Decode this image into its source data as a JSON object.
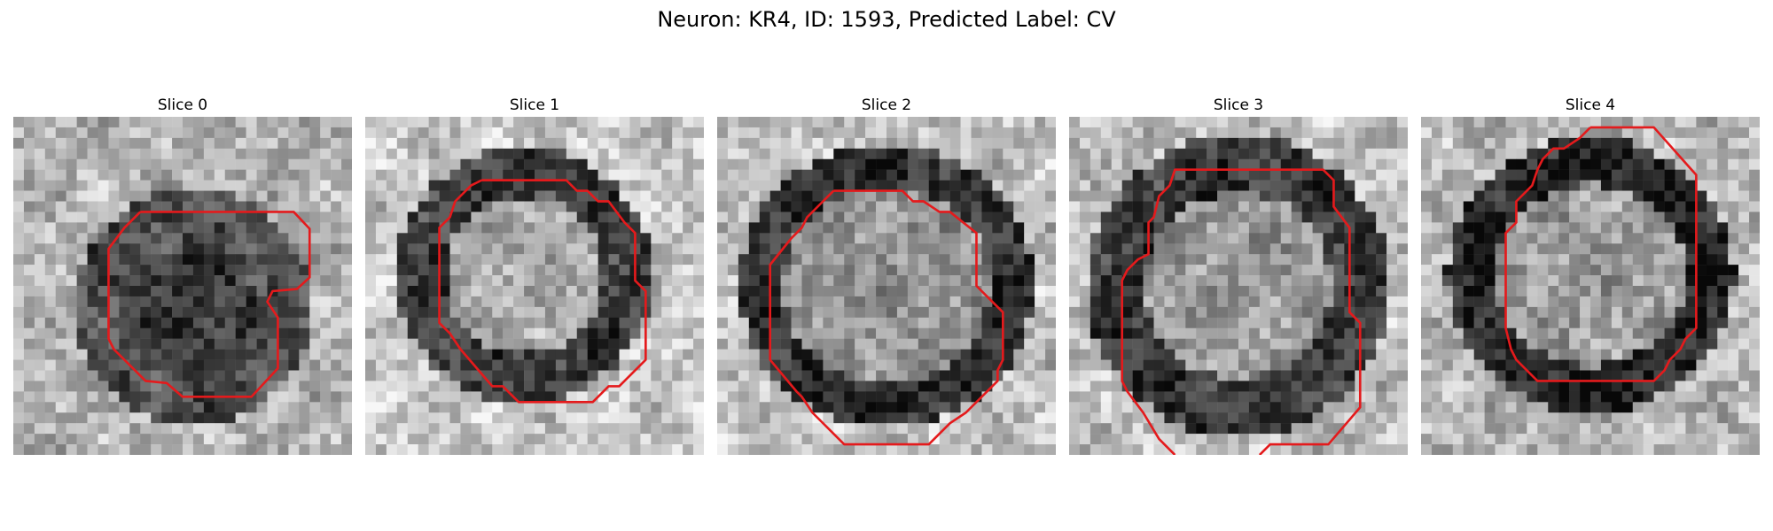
{
  "figure": {
    "title": "Neuron: KR4, ID: 1593, Predicted Label: CV"
  },
  "colors": {
    "contour": "#e41a1c",
    "background": "#ffffff",
    "colormap": "grayscale"
  },
  "slices": [
    {
      "title": "Slice 0"
    },
    {
      "title": "Slice 1"
    },
    {
      "title": "Slice 2"
    },
    {
      "title": "Slice 3"
    },
    {
      "title": "Slice 4"
    }
  ]
}
